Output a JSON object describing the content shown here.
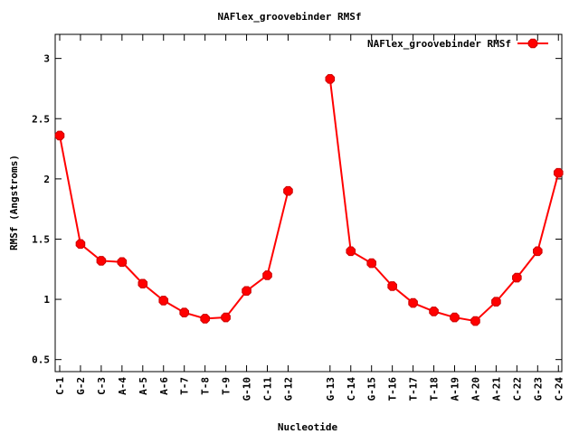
{
  "chart_data": {
    "type": "line",
    "title": "NAFlex_groovebinder RMSf",
    "xlabel": "Nucleotide",
    "ylabel": "RMSf (Angstroms)",
    "ylim": [
      0.4,
      3.2
    ],
    "yticks": [
      "0.5",
      "1",
      "1.5",
      "2",
      "2.5",
      "3"
    ],
    "ytick_values": [
      0.5,
      1,
      1.5,
      2,
      2.5,
      3
    ],
    "grid": false,
    "legend": {
      "position": "top-right",
      "entries": [
        "NAFlex_groovebinder RMSf"
      ]
    },
    "color": "#ff0000",
    "segments": [
      {
        "categories": [
          "C-1",
          "G-2",
          "C-3",
          "A-4",
          "A-5",
          "A-6",
          "T-7",
          "T-8",
          "T-9",
          "G-10",
          "C-11",
          "G-12"
        ],
        "values": [
          2.36,
          1.46,
          1.32,
          1.31,
          1.13,
          0.99,
          0.89,
          0.84,
          0.85,
          1.07,
          1.2,
          1.9
        ]
      },
      {
        "categories": [
          "G-13",
          "C-14",
          "G-15",
          "T-16",
          "T-17",
          "T-18",
          "A-19",
          "A-20",
          "A-21",
          "C-22",
          "G-23",
          "C-24"
        ],
        "values": [
          2.83,
          1.4,
          1.3,
          1.11,
          0.97,
          0.9,
          0.85,
          0.82,
          0.98,
          1.18,
          1.4,
          2.05
        ]
      }
    ]
  }
}
